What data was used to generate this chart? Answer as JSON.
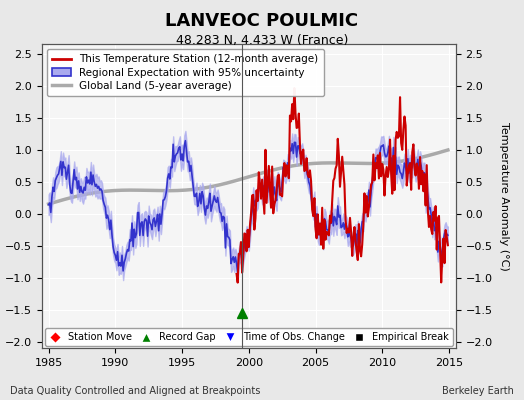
{
  "title": "LANVEOC POULMIC",
  "subtitle": "48.283 N, 4.433 W (France)",
  "ylabel": "Temperature Anomaly (°C)",
  "footer_left": "Data Quality Controlled and Aligned at Breakpoints",
  "footer_right": "Berkeley Earth",
  "xlim": [
    1984.5,
    2015.5
  ],
  "ylim": [
    -2.1,
    2.65
  ],
  "yticks": [
    -2,
    -1.5,
    -1,
    -0.5,
    0,
    0.5,
    1,
    1.5,
    2,
    2.5
  ],
  "xticks": [
    1985,
    1990,
    1995,
    2000,
    2005,
    2010,
    2015
  ],
  "vline_x": 1999.5,
  "record_gap_x": 1999.5,
  "record_gap_y": -1.55,
  "bg_color": "#e8e8e8",
  "plot_bg_color": "#f5f5f5",
  "grid_color": "#ffffff",
  "red_color": "#cc0000",
  "blue_color": "#3333cc",
  "blue_fill_color": "#aaaaee",
  "gray_color": "#aaaaaa",
  "vline_color": "#555555"
}
